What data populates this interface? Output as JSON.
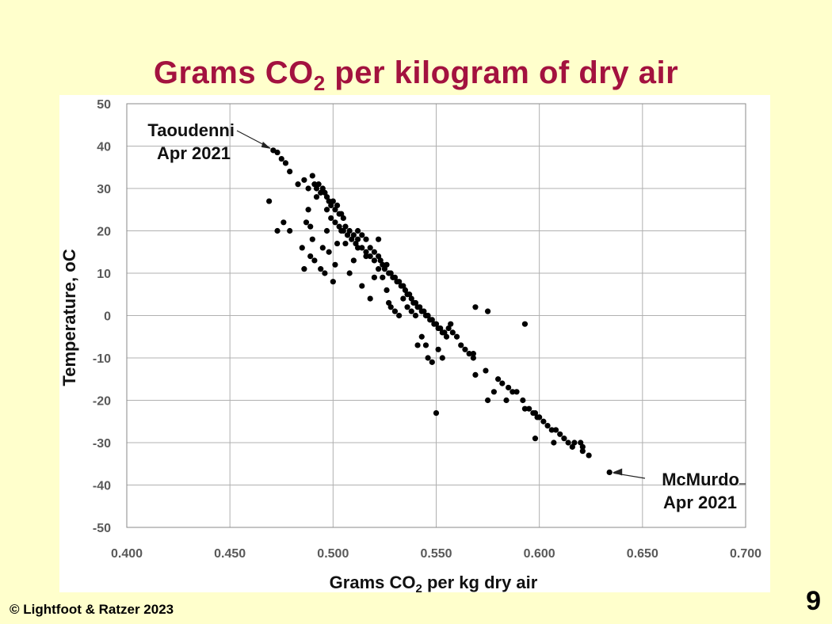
{
  "slide": {
    "title_pre": "Grams CO",
    "title_sub": "2",
    "title_post": " per kilogram of dry air",
    "copyright": "© Lightfoot & Ratzer 2023",
    "page_number": "9"
  },
  "chart_data": {
    "type": "scatter",
    "title": "Grams CO2 per kilogram of dry air",
    "xlabel_pre": "Grams CO",
    "xlabel_sub": "2",
    "xlabel_post": " per kg dry air",
    "ylabel": "Temperature, oC",
    "xlim": [
      0.4,
      0.7
    ],
    "ylim": [
      -50,
      50
    ],
    "xticks": [
      0.4,
      0.45,
      0.5,
      0.55,
      0.6,
      0.65,
      0.7
    ],
    "xtick_labels": [
      "0.400",
      "0.450",
      "0.500",
      "0.550",
      "0.600",
      "0.650",
      "0.700"
    ],
    "yticks": [
      50,
      40,
      30,
      20,
      10,
      0,
      -10,
      -20,
      -30,
      -40,
      -50
    ],
    "ytick_labels": [
      "50",
      "40",
      "30",
      "20",
      "10",
      "0",
      "-10",
      "-20",
      "-30",
      "-40",
      "-50"
    ],
    "grid": true,
    "marker_color": "#000000",
    "annotations": [
      {
        "line1": "Taoudenni",
        "line2": "Apr 2021",
        "x": 0.471,
        "y": 39,
        "side": "left"
      },
      {
        "line1": "McMurdo",
        "line2": "Apr 2021",
        "x": 0.634,
        "y": -37,
        "side": "right"
      }
    ],
    "points": [
      [
        0.471,
        39
      ],
      [
        0.473,
        38.5
      ],
      [
        0.475,
        37
      ],
      [
        0.477,
        36
      ],
      [
        0.479,
        34
      ],
      [
        0.483,
        31
      ],
      [
        0.486,
        32
      ],
      [
        0.488,
        30
      ],
      [
        0.49,
        33
      ],
      [
        0.491,
        31
      ],
      [
        0.492,
        30
      ],
      [
        0.493,
        31
      ],
      [
        0.494,
        29
      ],
      [
        0.495,
        30
      ],
      [
        0.496,
        29
      ],
      [
        0.497,
        28
      ],
      [
        0.498,
        27
      ],
      [
        0.499,
        26
      ],
      [
        0.5,
        27
      ],
      [
        0.501,
        25
      ],
      [
        0.502,
        26
      ],
      [
        0.503,
        24
      ],
      [
        0.504,
        24
      ],
      [
        0.505,
        23
      ],
      [
        0.497,
        25
      ],
      [
        0.499,
        23
      ],
      [
        0.501,
        22
      ],
      [
        0.503,
        21
      ],
      [
        0.505,
        20
      ],
      [
        0.507,
        19
      ],
      [
        0.509,
        18
      ],
      [
        0.511,
        17
      ],
      [
        0.506,
        21
      ],
      [
        0.508,
        20
      ],
      [
        0.51,
        19
      ],
      [
        0.512,
        18
      ],
      [
        0.514,
        16
      ],
      [
        0.516,
        15
      ],
      [
        0.518,
        14
      ],
      [
        0.52,
        13
      ],
      [
        0.512,
        20
      ],
      [
        0.514,
        19
      ],
      [
        0.516,
        18
      ],
      [
        0.518,
        16
      ],
      [
        0.52,
        15
      ],
      [
        0.522,
        14
      ],
      [
        0.522,
        18
      ],
      [
        0.523,
        13
      ],
      [
        0.524,
        12
      ],
      [
        0.525,
        11
      ],
      [
        0.526,
        12
      ],
      [
        0.527,
        10
      ],
      [
        0.528,
        10
      ],
      [
        0.529,
        9
      ],
      [
        0.53,
        9
      ],
      [
        0.531,
        8
      ],
      [
        0.532,
        8
      ],
      [
        0.533,
        7
      ],
      [
        0.534,
        7
      ],
      [
        0.535,
        6
      ],
      [
        0.536,
        5
      ],
      [
        0.537,
        5
      ],
      [
        0.538,
        4
      ],
      [
        0.539,
        3
      ],
      [
        0.54,
        3
      ],
      [
        0.541,
        2
      ],
      [
        0.542,
        2
      ],
      [
        0.543,
        1
      ],
      [
        0.544,
        1
      ],
      [
        0.545,
        0
      ],
      [
        0.546,
        0
      ],
      [
        0.547,
        -1
      ],
      [
        0.548,
        -1
      ],
      [
        0.549,
        -2
      ],
      [
        0.55,
        -2
      ],
      [
        0.551,
        -3
      ],
      [
        0.552,
        -3
      ],
      [
        0.553,
        -4
      ],
      [
        0.554,
        -4
      ],
      [
        0.555,
        -5
      ],
      [
        0.556,
        -3
      ],
      [
        0.557,
        -2
      ],
      [
        0.558,
        -4
      ],
      [
        0.56,
        -5
      ],
      [
        0.562,
        -7
      ],
      [
        0.564,
        -8
      ],
      [
        0.566,
        -9
      ],
      [
        0.568,
        -10
      ],
      [
        0.568,
        -9
      ],
      [
        0.569,
        -14
      ],
      [
        0.574,
        -13
      ],
      [
        0.575,
        -20
      ],
      [
        0.578,
        -18
      ],
      [
        0.58,
        -15
      ],
      [
        0.582,
        -16
      ],
      [
        0.584,
        -20
      ],
      [
        0.585,
        -17
      ],
      [
        0.587,
        -18
      ],
      [
        0.589,
        -18
      ],
      [
        0.592,
        -20
      ],
      [
        0.593,
        -22
      ],
      [
        0.595,
        -22
      ],
      [
        0.597,
        -23
      ],
      [
        0.598,
        -23
      ],
      [
        0.599,
        -24
      ],
      [
        0.6,
        -24
      ],
      [
        0.602,
        -25
      ],
      [
        0.604,
        -26
      ],
      [
        0.606,
        -27
      ],
      [
        0.608,
        -27
      ],
      [
        0.61,
        -28
      ],
      [
        0.612,
        -29
      ],
      [
        0.614,
        -30
      ],
      [
        0.617,
        -30
      ],
      [
        0.62,
        -30
      ],
      [
        0.621,
        -32
      ],
      [
        0.624,
        -33
      ],
      [
        0.634,
        -37
      ],
      [
        0.469,
        27
      ],
      [
        0.473,
        20
      ],
      [
        0.476,
        22
      ],
      [
        0.479,
        20
      ],
      [
        0.485,
        16
      ],
      [
        0.486,
        11
      ],
      [
        0.487,
        22
      ],
      [
        0.488,
        25
      ],
      [
        0.489,
        21
      ],
      [
        0.489,
        14
      ],
      [
        0.49,
        18
      ],
      [
        0.491,
        13
      ],
      [
        0.492,
        28
      ],
      [
        0.494,
        11
      ],
      [
        0.495,
        16
      ],
      [
        0.496,
        10
      ],
      [
        0.497,
        20
      ],
      [
        0.498,
        15
      ],
      [
        0.5,
        8
      ],
      [
        0.501,
        12
      ],
      [
        0.502,
        17
      ],
      [
        0.504,
        20
      ],
      [
        0.506,
        17
      ],
      [
        0.508,
        10
      ],
      [
        0.51,
        13
      ],
      [
        0.512,
        16
      ],
      [
        0.514,
        7
      ],
      [
        0.516,
        14
      ],
      [
        0.518,
        4
      ],
      [
        0.52,
        9
      ],
      [
        0.522,
        11
      ],
      [
        0.524,
        9
      ],
      [
        0.526,
        6
      ],
      [
        0.527,
        3
      ],
      [
        0.528,
        2
      ],
      [
        0.53,
        1
      ],
      [
        0.532,
        0
      ],
      [
        0.534,
        4
      ],
      [
        0.536,
        2
      ],
      [
        0.538,
        1
      ],
      [
        0.54,
        0
      ],
      [
        0.541,
        -7
      ],
      [
        0.543,
        -5
      ],
      [
        0.545,
        -7
      ],
      [
        0.546,
        -10
      ],
      [
        0.548,
        -11
      ],
      [
        0.55,
        -23
      ],
      [
        0.551,
        -8
      ],
      [
        0.553,
        -10
      ],
      [
        0.569,
        2
      ],
      [
        0.575,
        1
      ],
      [
        0.593,
        -2
      ],
      [
        0.598,
        -29
      ],
      [
        0.607,
        -30
      ],
      [
        0.616,
        -31
      ],
      [
        0.621,
        -31
      ]
    ]
  }
}
